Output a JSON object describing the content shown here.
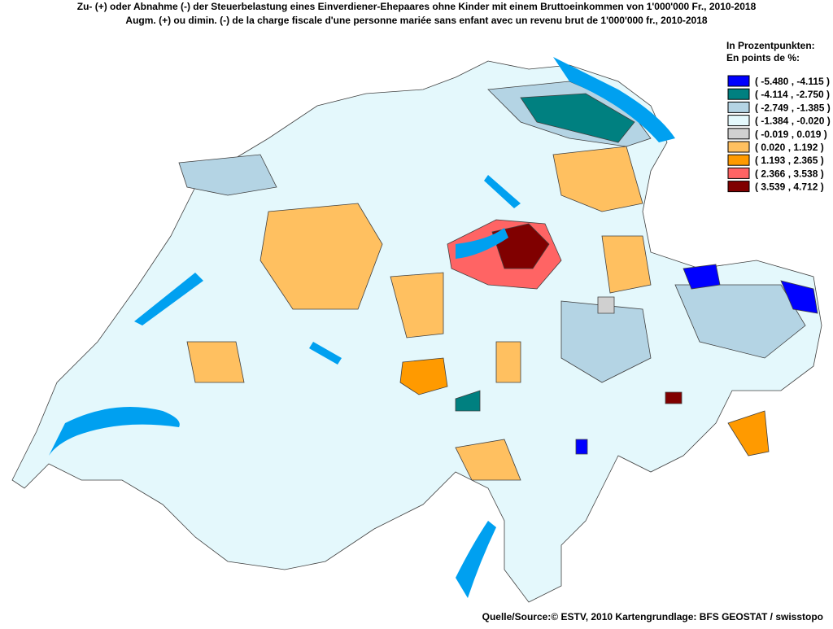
{
  "title": {
    "line1": "Zu- (+) oder Abnahme (-) der Steuerbelastung eines Einverdiener-Ehepaares ohne Kinder mit einem Bruttoeinkommen von 1'000'000 Fr., 2010-2018",
    "line2": "Augm. (+) ou dimin. (-) de la charge fiscale d'une personne mariée sans enfant avec un revenu brut de 1'000'000 fr., 2010-2018"
  },
  "legend": {
    "heading": [
      "In Prozentpunkten:",
      "En points de %:"
    ],
    "items": [
      {
        "label": "( -5.480 , -4.115 )",
        "color": "#0000ff"
      },
      {
        "label": "( -4.114 , -2.750 )",
        "color": "#008080"
      },
      {
        "label": "( -2.749 , -1.385 )",
        "color": "#b4d4e4"
      },
      {
        "label": "( -1.384 , -0.020 )",
        "color": "#e4f8fc"
      },
      {
        "label": "( -0.019 , 0.019 )",
        "color": "#d0d0d0"
      },
      {
        "label": "( 0.020 , 1.192 )",
        "color": "#ffc060"
      },
      {
        "label": "( 1.193 , 2.365 )",
        "color": "#ff9a00"
      },
      {
        "label": "( 2.366 , 3.538 )",
        "color": "#ff6464"
      },
      {
        "label": "( 3.539 , 4.712 )",
        "color": "#800000"
      }
    ]
  },
  "source": "Quelle/Source:© ESTV, 2010 Kartengrundlage: BFS GEOSTAT / swisstopo"
}
